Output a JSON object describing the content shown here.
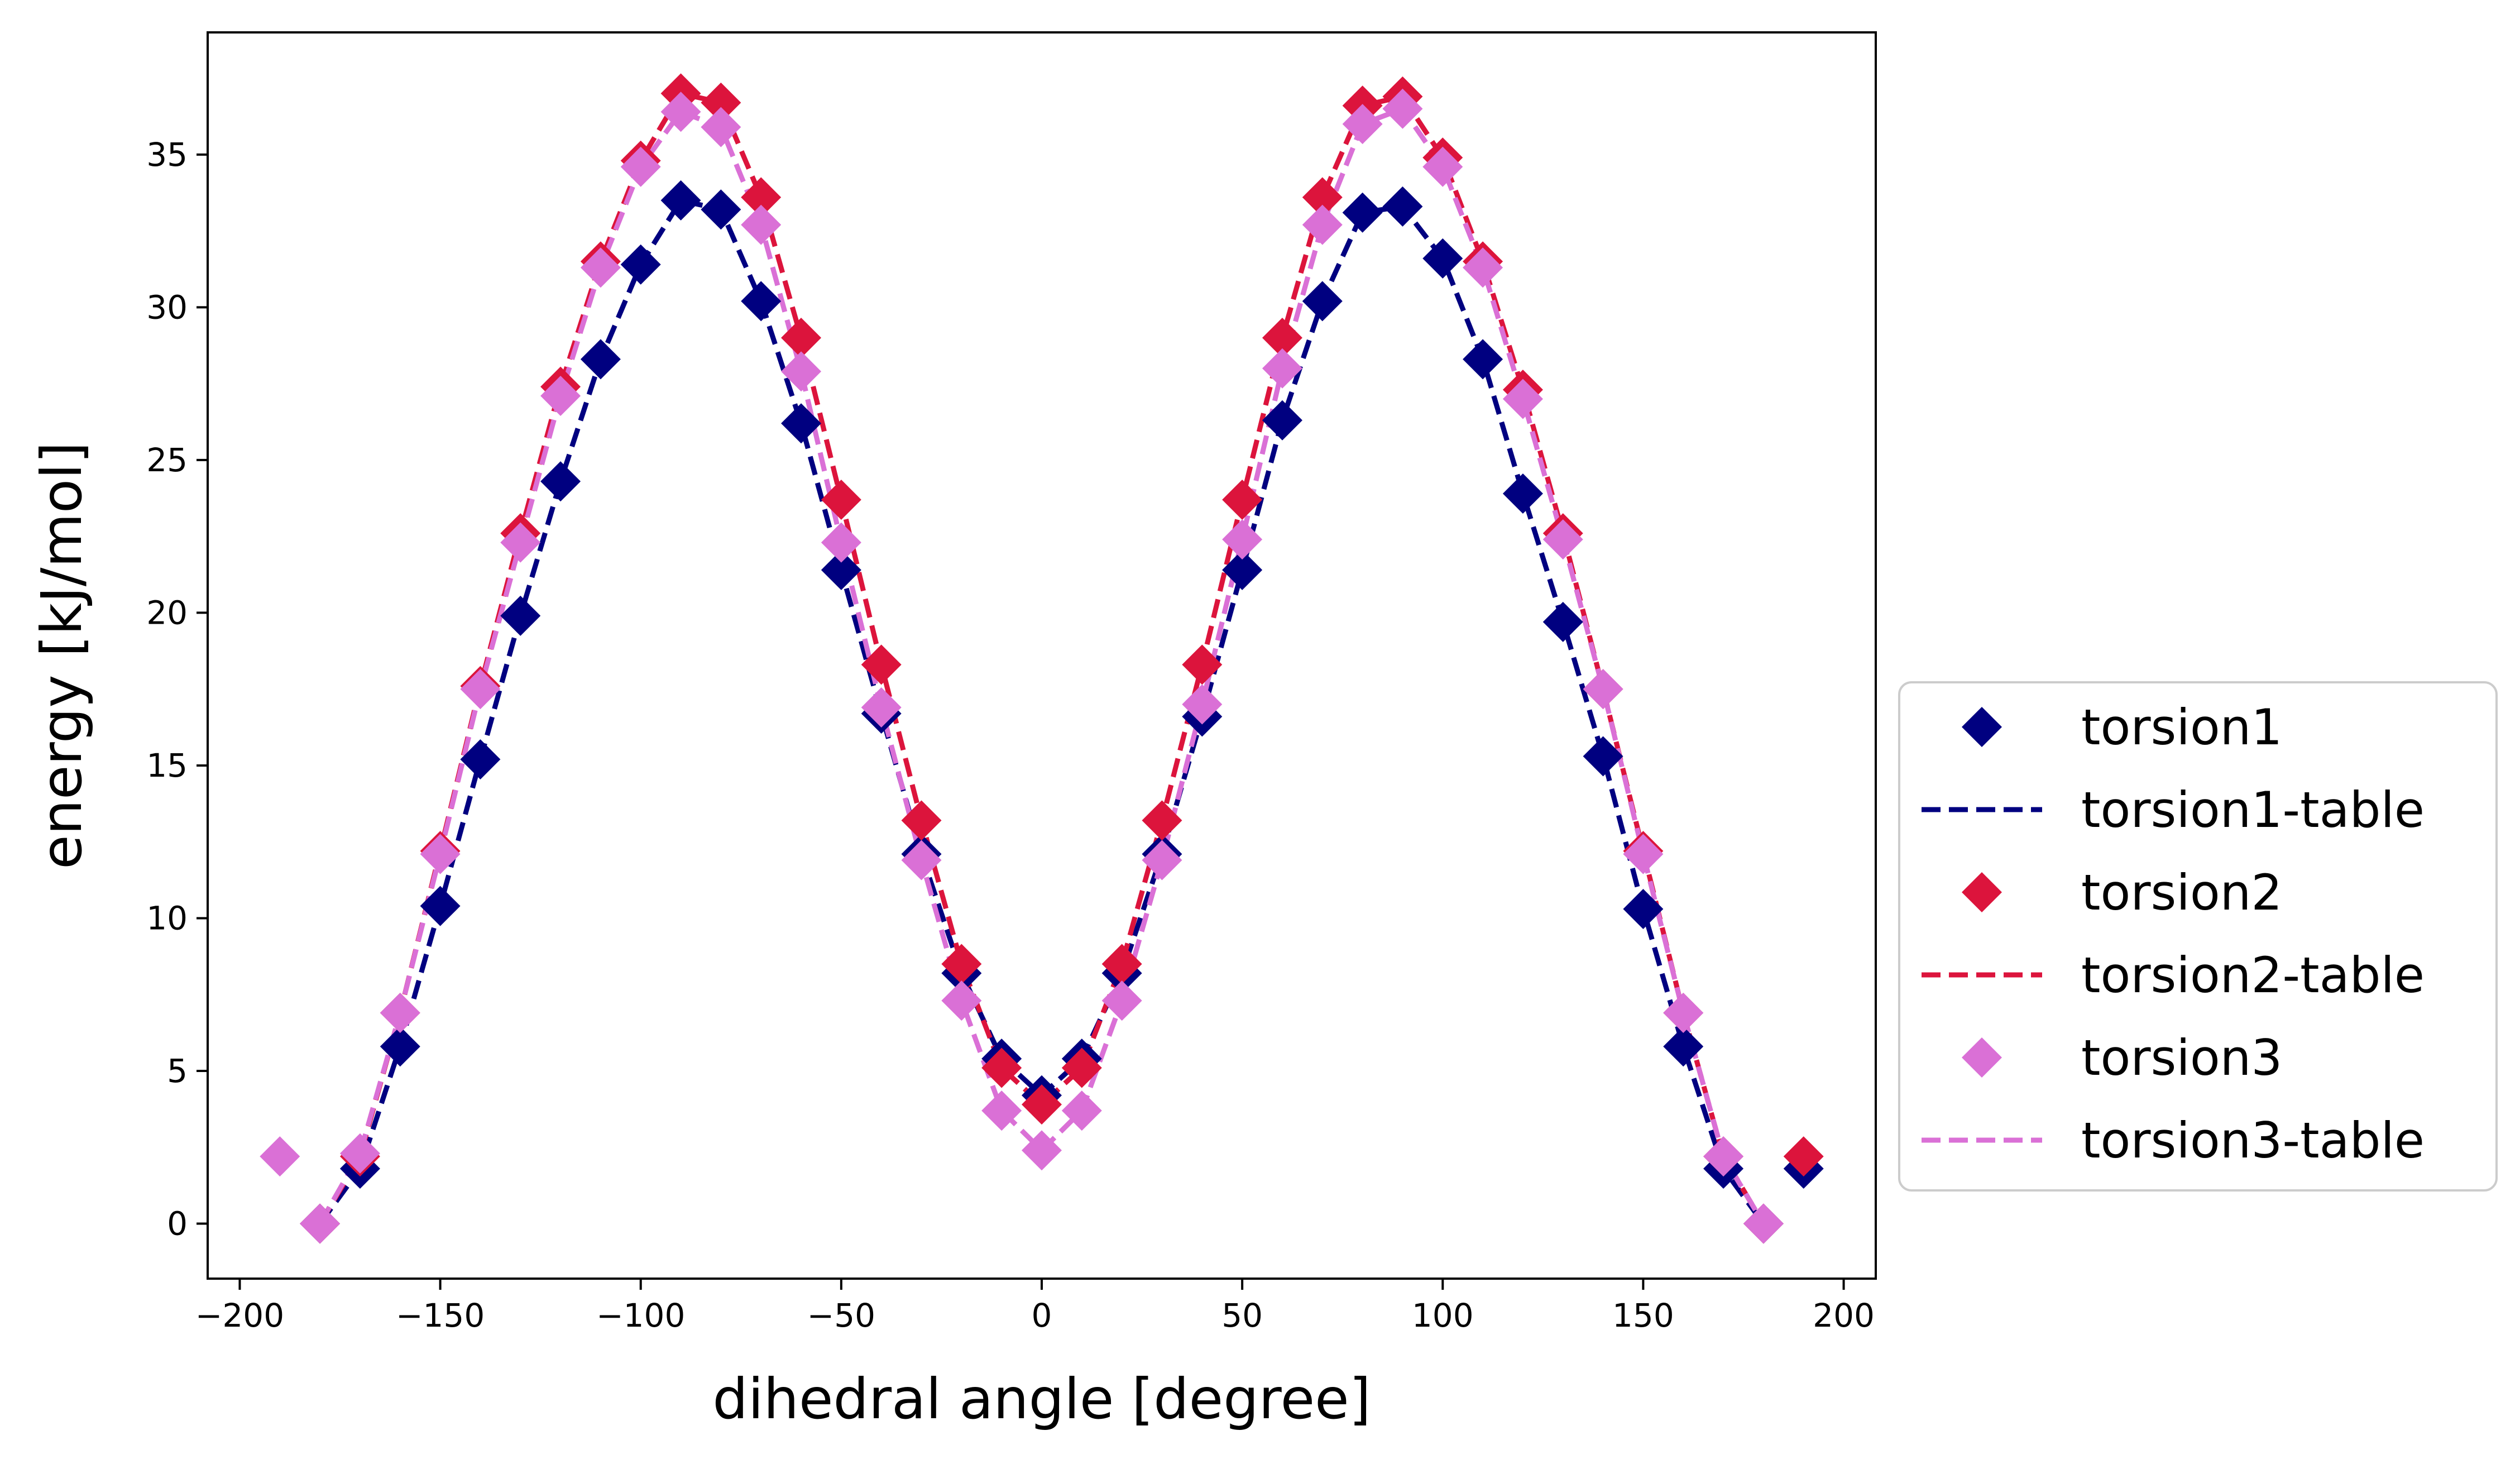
{
  "chart_data": {
    "type": "line",
    "title": "",
    "xlabel": "dihedral angle [degree]",
    "ylabel": "energy [kJ/mol]",
    "xlim": [
      -208,
      208
    ],
    "ylim": [
      -1.8,
      39.0
    ],
    "xticks": [
      -200,
      -150,
      -100,
      -50,
      0,
      50,
      100,
      150,
      200
    ],
    "xtick_labels": [
      "−200",
      "−150",
      "−100",
      "−50",
      "0",
      "50",
      "100",
      "150",
      "200"
    ],
    "yticks": [
      0,
      5,
      10,
      15,
      20,
      25,
      30,
      35
    ],
    "ytick_labels": [
      "0",
      "5",
      "10",
      "15",
      "20",
      "25",
      "30",
      "35"
    ],
    "grid": false,
    "legend_placement": "outside-right-bottom",
    "series": [
      {
        "name": "torsion1",
        "kind": "markers",
        "marker": "diamond",
        "color": "#000080",
        "x": [
          -180,
          -170,
          -160,
          -150,
          -140,
          -130,
          -120,
          -110,
          -100,
          -90,
          -80,
          -70,
          -60,
          -50,
          -40,
          -30,
          -20,
          -10,
          0,
          10,
          20,
          30,
          40,
          50,
          60,
          70,
          80,
          90,
          100,
          110,
          120,
          130,
          140,
          150,
          160,
          170,
          180,
          190
        ],
        "y": [
          0.0,
          1.8,
          5.8,
          10.4,
          15.2,
          19.9,
          24.3,
          28.3,
          31.4,
          33.5,
          33.2,
          30.2,
          26.2,
          21.4,
          16.7,
          12.1,
          8.2,
          5.4,
          4.2,
          5.4,
          8.2,
          12.1,
          16.6,
          21.4,
          26.3,
          30.2,
          33.1,
          33.3,
          31.6,
          28.3,
          23.9,
          19.7,
          15.3,
          10.3,
          5.8,
          1.8,
          0.0,
          1.8
        ]
      },
      {
        "name": "torsion1-table",
        "kind": "dashed-line",
        "color": "#000080",
        "x": [
          -180,
          -170,
          -160,
          -150,
          -140,
          -130,
          -120,
          -110,
          -100,
          -90,
          -80,
          -70,
          -60,
          -50,
          -40,
          -30,
          -20,
          -10,
          0,
          10,
          20,
          30,
          40,
          50,
          60,
          70,
          80,
          90,
          100,
          110,
          120,
          130,
          140,
          150,
          160,
          170,
          180
        ],
        "y": [
          0.0,
          1.8,
          5.8,
          10.4,
          15.2,
          19.9,
          24.3,
          28.3,
          31.4,
          33.5,
          33.2,
          30.2,
          26.2,
          21.4,
          16.7,
          12.1,
          8.2,
          5.4,
          4.2,
          5.4,
          8.2,
          12.1,
          16.6,
          21.4,
          26.3,
          30.2,
          33.1,
          33.3,
          31.6,
          28.3,
          23.9,
          19.7,
          15.3,
          10.3,
          5.8,
          1.8,
          0.0
        ]
      },
      {
        "name": "torsion2",
        "kind": "markers",
        "marker": "diamond",
        "color": "#dc143c",
        "x": [
          -180,
          -170,
          -160,
          -150,
          -140,
          -130,
          -120,
          -110,
          -100,
          -90,
          -80,
          -70,
          -60,
          -50,
          -40,
          -30,
          -20,
          -10,
          0,
          10,
          20,
          30,
          40,
          50,
          60,
          70,
          80,
          90,
          100,
          110,
          120,
          130,
          140,
          150,
          160,
          170,
          180,
          190
        ],
        "y": [
          0.0,
          2.2,
          6.9,
          12.2,
          17.6,
          22.6,
          27.4,
          31.5,
          34.8,
          37.0,
          36.7,
          33.6,
          29.0,
          23.7,
          18.3,
          13.2,
          8.5,
          5.1,
          3.9,
          5.1,
          8.5,
          13.2,
          18.3,
          23.7,
          29.0,
          33.6,
          36.6,
          36.9,
          34.9,
          31.5,
          27.3,
          22.6,
          17.5,
          12.2,
          6.9,
          2.2,
          0.0,
          2.2
        ]
      },
      {
        "name": "torsion2-table",
        "kind": "dashed-line",
        "color": "#dc143c",
        "x": [
          -180,
          -170,
          -160,
          -150,
          -140,
          -130,
          -120,
          -110,
          -100,
          -90,
          -80,
          -70,
          -60,
          -50,
          -40,
          -30,
          -20,
          -10,
          0,
          10,
          20,
          30,
          40,
          50,
          60,
          70,
          80,
          90,
          100,
          110,
          120,
          130,
          140,
          150,
          160,
          170,
          180
        ],
        "y": [
          0.0,
          2.2,
          6.9,
          12.2,
          17.6,
          22.6,
          27.4,
          31.5,
          34.8,
          37.0,
          36.7,
          33.6,
          29.0,
          23.7,
          18.3,
          13.2,
          8.5,
          5.1,
          3.9,
          5.1,
          8.5,
          13.2,
          18.3,
          23.7,
          29.0,
          33.6,
          36.6,
          36.9,
          34.9,
          31.5,
          27.3,
          22.6,
          17.5,
          12.2,
          6.9,
          2.2,
          0.0
        ]
      },
      {
        "name": "torsion3",
        "kind": "markers",
        "marker": "diamond",
        "color": "#da70d6",
        "x": [
          -190,
          -180,
          -170,
          -160,
          -150,
          -140,
          -130,
          -120,
          -110,
          -100,
          -90,
          -80,
          -70,
          -60,
          -50,
          -40,
          -30,
          -20,
          -10,
          0,
          10,
          20,
          30,
          40,
          50,
          60,
          70,
          80,
          90,
          100,
          110,
          120,
          130,
          140,
          150,
          160,
          170,
          180
        ],
        "y": [
          2.2,
          0.0,
          2.3,
          6.9,
          12.1,
          17.5,
          22.3,
          27.1,
          31.3,
          34.6,
          36.4,
          35.9,
          32.7,
          27.9,
          22.3,
          16.9,
          11.9,
          7.3,
          3.7,
          2.4,
          3.7,
          7.3,
          11.9,
          17.0,
          22.4,
          28.0,
          32.7,
          36.0,
          36.5,
          34.6,
          31.3,
          27.0,
          22.4,
          17.5,
          12.1,
          6.9,
          2.2,
          0.0
        ]
      },
      {
        "name": "torsion3-table",
        "kind": "dashed-line",
        "color": "#da70d6",
        "x": [
          -180,
          -170,
          -160,
          -150,
          -140,
          -130,
          -120,
          -110,
          -100,
          -90,
          -80,
          -70,
          -60,
          -50,
          -40,
          -30,
          -20,
          -10,
          0,
          10,
          20,
          30,
          40,
          50,
          60,
          70,
          80,
          90,
          100,
          110,
          120,
          130,
          140,
          150,
          160,
          170,
          180
        ],
        "y": [
          0.0,
          2.3,
          6.9,
          12.1,
          17.5,
          22.3,
          27.1,
          31.3,
          34.6,
          36.4,
          35.9,
          32.7,
          27.9,
          22.3,
          16.9,
          11.9,
          7.3,
          3.7,
          2.4,
          3.7,
          7.3,
          11.9,
          17.0,
          22.4,
          28.0,
          32.7,
          36.0,
          36.5,
          34.6,
          31.3,
          27.0,
          22.4,
          17.5,
          12.1,
          6.9,
          2.2,
          0.0
        ]
      }
    ]
  }
}
